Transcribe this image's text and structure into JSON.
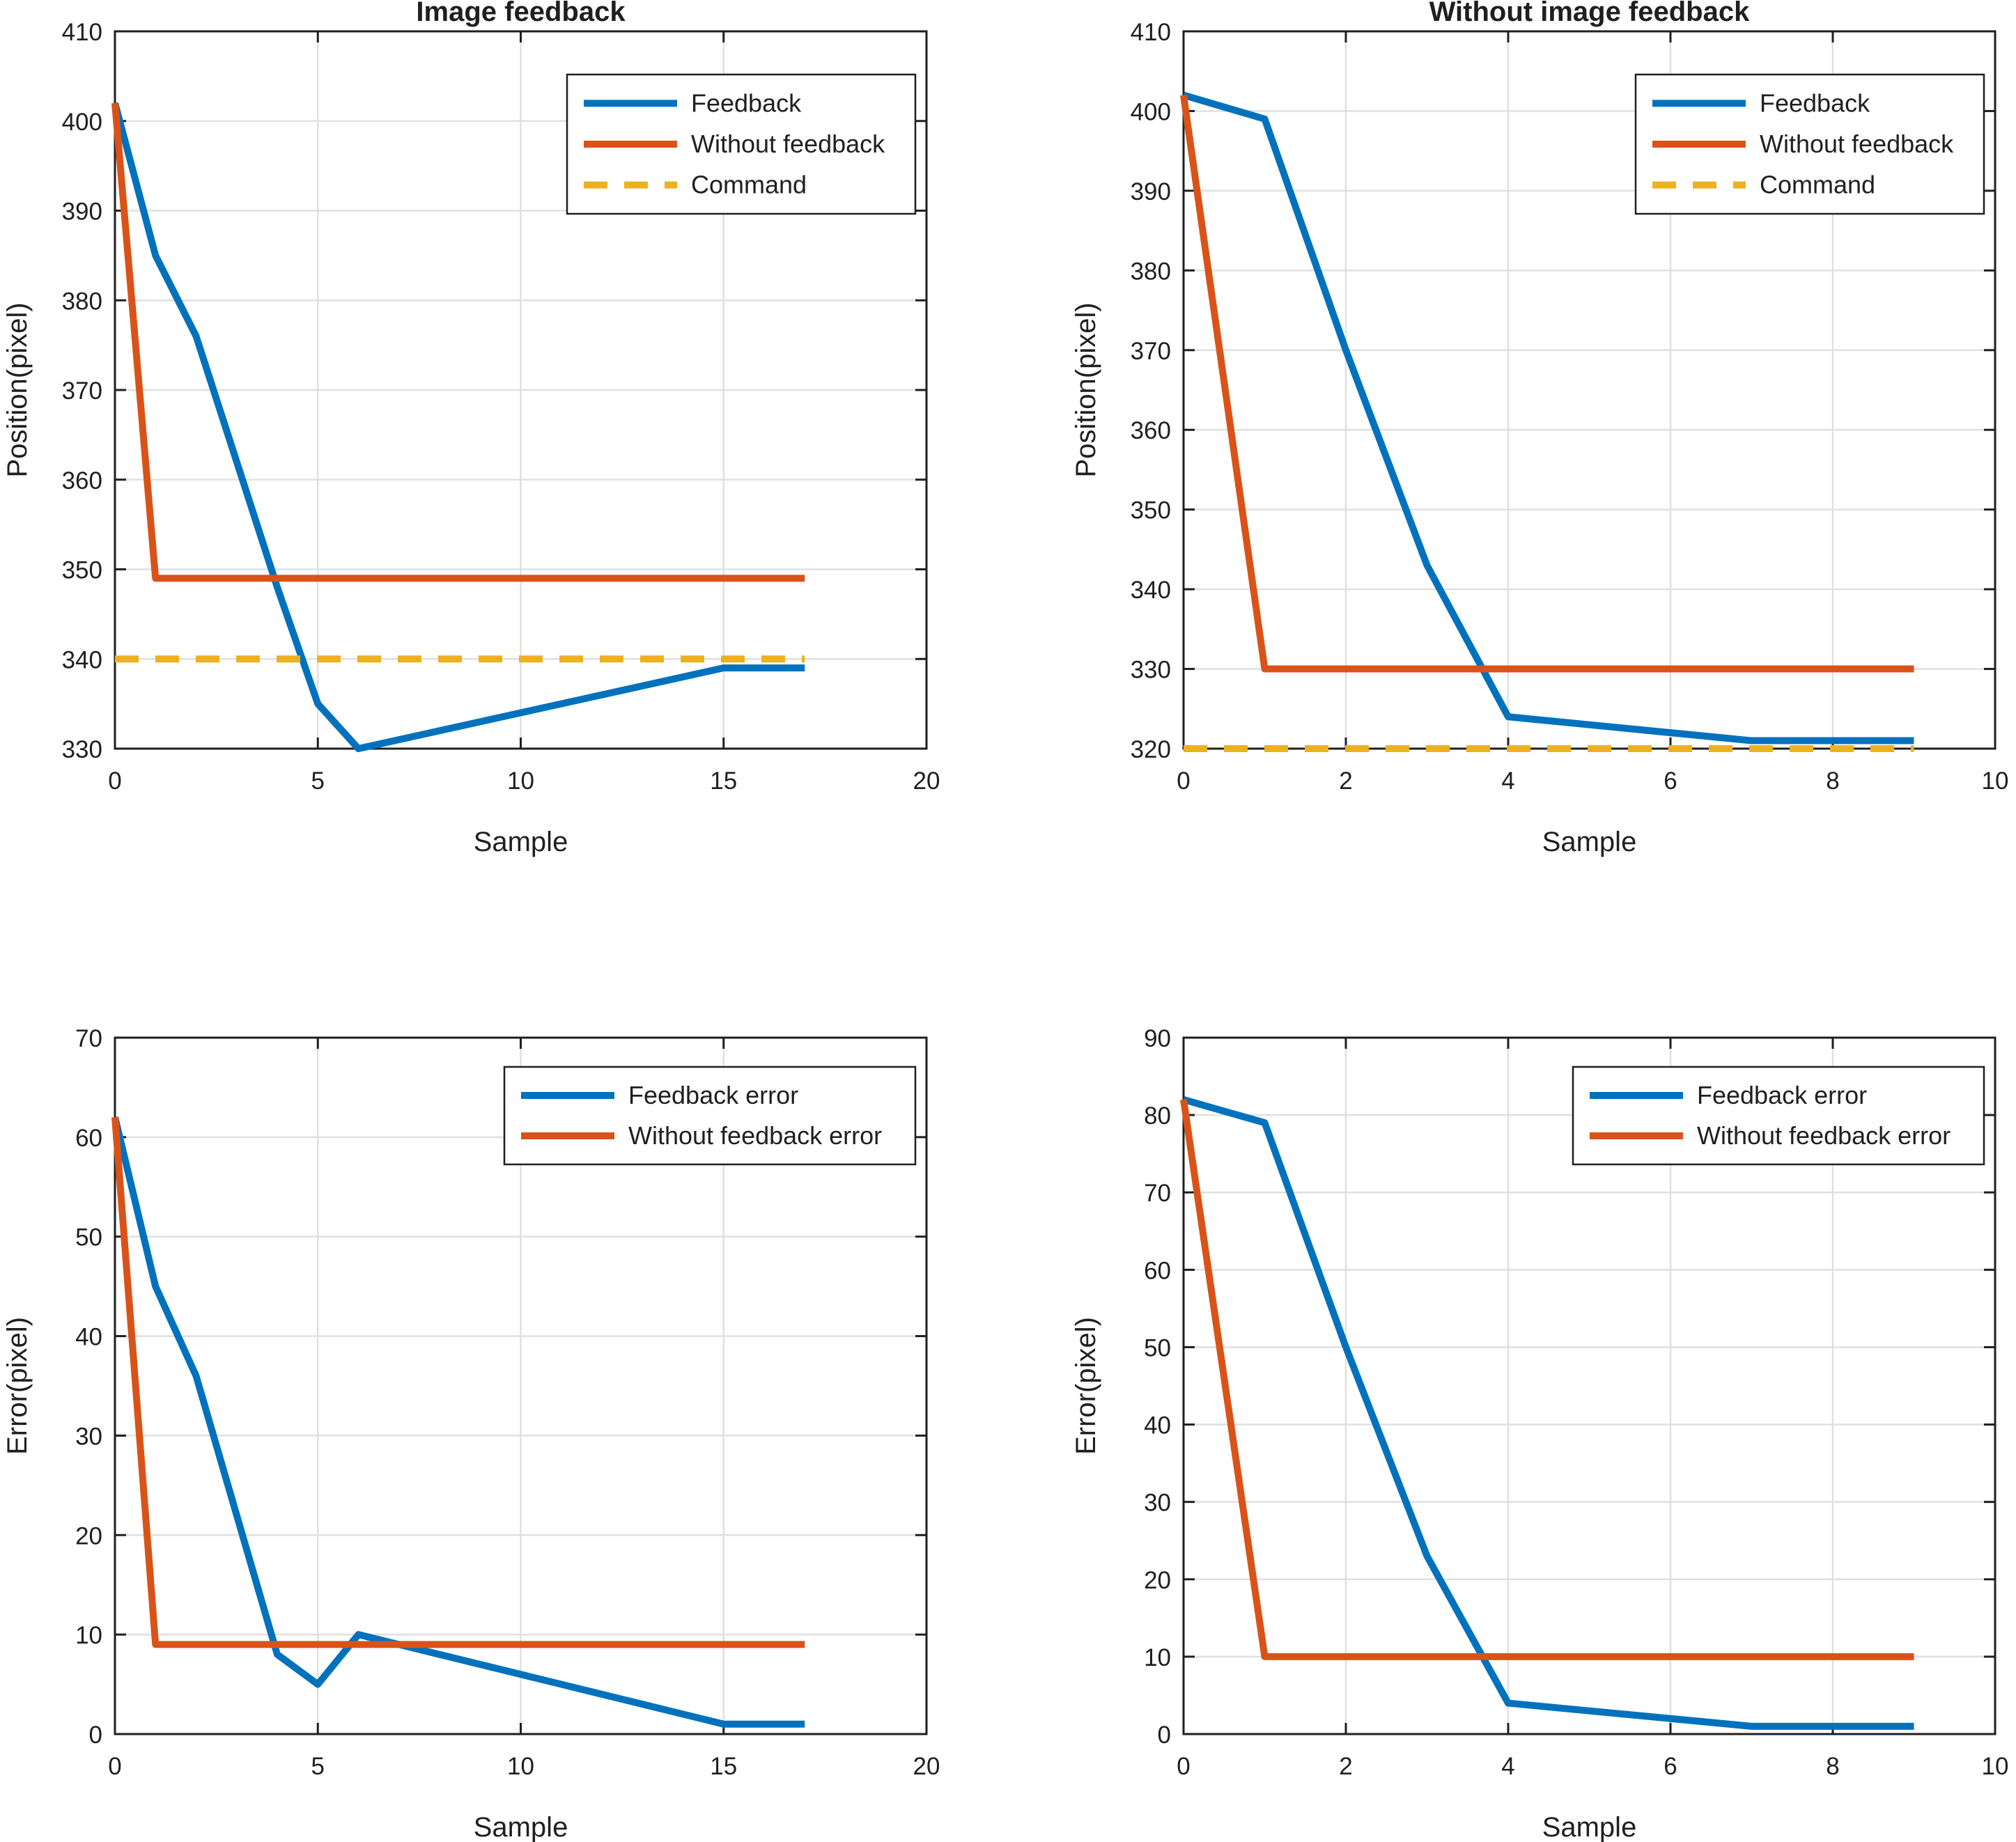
{
  "figure": {
    "background": "#ffffff",
    "colors": {
      "feedback": "#0072BD",
      "without_feedback": "#D95319",
      "command": "#EDB120",
      "grid": "#E0E0E0",
      "axis": "#1F1F1F",
      "text": "#1F1F1F",
      "legend_background": "#FFFFFF"
    }
  },
  "chart_data": [
    {
      "type": "line",
      "title": "Image feedback",
      "xlabel": "Sample",
      "ylabel": "Position(pixel)",
      "xlim": [
        0,
        20
      ],
      "ylim": [
        330,
        410
      ],
      "xticks": [
        0,
        5,
        10,
        15,
        20
      ],
      "yticks": [
        330,
        340,
        350,
        360,
        370,
        380,
        390,
        400,
        410
      ],
      "grid": true,
      "legend_position": "northeast",
      "legend_entries": [
        "Feedback",
        "Without feedback",
        "Command"
      ],
      "series": [
        {
          "name": "Feedback",
          "color": "#0072BD",
          "style": "solid",
          "x": [
            0,
            1,
            2,
            3,
            4,
            5,
            6,
            7,
            8,
            9,
            10,
            11,
            12,
            13,
            14,
            15,
            16,
            17
          ],
          "y": [
            402,
            385,
            376,
            362,
            348,
            335,
            330,
            331,
            332,
            333,
            334,
            335,
            336,
            337,
            338,
            339,
            339,
            339
          ]
        },
        {
          "name": "Without feedback",
          "color": "#D95319",
          "style": "solid",
          "x": [
            0,
            1,
            17
          ],
          "y": [
            402,
            349,
            349
          ]
        },
        {
          "name": "Command",
          "color": "#EDB120",
          "style": "dashed",
          "x": [
            0,
            17
          ],
          "y": [
            340,
            340
          ]
        }
      ]
    },
    {
      "type": "line",
      "title": "Without image feedback",
      "xlabel": "Sample",
      "ylabel": "Position(pixel)",
      "xlim": [
        0,
        10
      ],
      "ylim": [
        320,
        410
      ],
      "xticks": [
        0,
        2,
        4,
        6,
        8,
        10
      ],
      "yticks": [
        320,
        330,
        340,
        350,
        360,
        370,
        380,
        390,
        400,
        410
      ],
      "grid": true,
      "legend_position": "northeast",
      "legend_entries": [
        "Feedback",
        "Without feedback",
        "Command"
      ],
      "series": [
        {
          "name": "Feedback",
          "color": "#0072BD",
          "style": "solid",
          "x": [
            0,
            1,
            2,
            3,
            4,
            5,
            6,
            7,
            8,
            9
          ],
          "y": [
            402,
            399,
            370,
            343,
            324,
            323,
            322,
            321,
            321,
            321
          ]
        },
        {
          "name": "Without feedback",
          "color": "#D95319",
          "style": "solid",
          "x": [
            0,
            1,
            9
          ],
          "y": [
            402,
            330,
            330
          ]
        },
        {
          "name": "Command",
          "color": "#EDB120",
          "style": "dashed",
          "x": [
            0,
            9
          ],
          "y": [
            320,
            320
          ]
        }
      ]
    },
    {
      "type": "line",
      "title": "",
      "xlabel": "Sample",
      "ylabel": "Error(pixel)",
      "xlim": [
        0,
        20
      ],
      "ylim": [
        0,
        70
      ],
      "xticks": [
        0,
        5,
        10,
        15,
        20
      ],
      "yticks": [
        0,
        10,
        20,
        30,
        40,
        50,
        60,
        70
      ],
      "grid": true,
      "legend_position": "northeast",
      "legend_entries": [
        "Feedback error",
        "Without feedback error"
      ],
      "series": [
        {
          "name": "Feedback error",
          "color": "#0072BD",
          "style": "solid",
          "x": [
            0,
            1,
            2,
            3,
            4,
            5,
            6,
            7,
            8,
            9,
            10,
            11,
            12,
            13,
            14,
            15,
            16,
            17
          ],
          "y": [
            62,
            45,
            36,
            22,
            8,
            5,
            10,
            9,
            8,
            7,
            6,
            5,
            4,
            3,
            2,
            1,
            1,
            1
          ]
        },
        {
          "name": "Without feedback error",
          "color": "#D95319",
          "style": "solid",
          "x": [
            0,
            1,
            17
          ],
          "y": [
            62,
            9,
            9
          ]
        }
      ]
    },
    {
      "type": "line",
      "title": "",
      "xlabel": "Sample",
      "ylabel": "Error(pixel)",
      "xlim": [
        0,
        10
      ],
      "ylim": [
        0,
        90
      ],
      "xticks": [
        0,
        2,
        4,
        6,
        8,
        10
      ],
      "yticks": [
        0,
        10,
        20,
        30,
        40,
        50,
        60,
        70,
        80,
        90
      ],
      "grid": true,
      "legend_position": "northeast",
      "legend_entries": [
        "Feedback error",
        "Without feedback error"
      ],
      "series": [
        {
          "name": "Feedback error",
          "color": "#0072BD",
          "style": "solid",
          "x": [
            0,
            1,
            2,
            3,
            4,
            5,
            6,
            7,
            8,
            9
          ],
          "y": [
            82,
            79,
            50,
            23,
            4,
            3,
            2,
            1,
            1,
            1
          ]
        },
        {
          "name": "Without feedback error",
          "color": "#D95319",
          "style": "solid",
          "x": [
            0,
            1,
            9
          ],
          "y": [
            82,
            10,
            10
          ]
        }
      ]
    }
  ]
}
